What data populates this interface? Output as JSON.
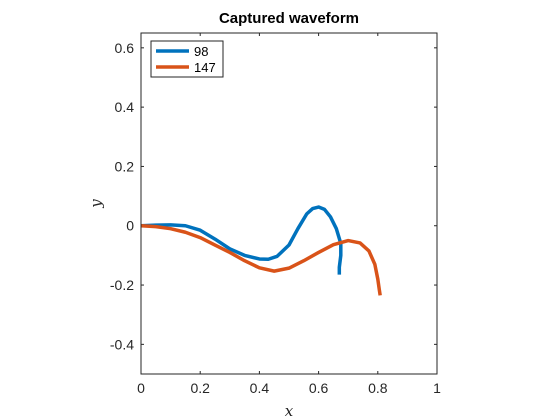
{
  "chart_data": {
    "type": "line",
    "title": "Captured waveform",
    "xlabel": "x",
    "ylabel": "y",
    "xlim": [
      0,
      1
    ],
    "ylim": [
      -0.5,
      0.65
    ],
    "x_ticks": [
      0,
      0.2,
      0.4,
      0.6,
      0.8,
      1
    ],
    "x_tick_labels": [
      "0",
      "0.2",
      "0.4",
      "0.6",
      "0.8",
      "1"
    ],
    "y_ticks": [
      -0.4,
      -0.2,
      0,
      0.2,
      0.4,
      0.6
    ],
    "y_tick_labels": [
      "-0.4",
      "-0.2",
      "0",
      "0.2",
      "0.4",
      "0.6"
    ],
    "grid": false,
    "legend_position": "top-left",
    "series": [
      {
        "name": "98",
        "color": "#0072BD",
        "x": [
          0,
          0.05,
          0.1,
          0.15,
          0.2,
          0.25,
          0.3,
          0.35,
          0.4,
          0.43,
          0.46,
          0.5,
          0.53,
          0.56,
          0.58,
          0.6,
          0.62,
          0.64,
          0.66,
          0.675,
          0.675,
          0.67,
          0.67
        ],
        "y": [
          0,
          0.002,
          0.003,
          0.0,
          -0.015,
          -0.045,
          -0.078,
          -0.1,
          -0.112,
          -0.113,
          -0.103,
          -0.065,
          -0.01,
          0.04,
          0.058,
          0.063,
          0.055,
          0.03,
          -0.01,
          -0.06,
          -0.1,
          -0.14,
          -0.165
        ]
      },
      {
        "name": "147",
        "color": "#D95319",
        "x": [
          0,
          0.05,
          0.1,
          0.15,
          0.2,
          0.25,
          0.3,
          0.35,
          0.4,
          0.45,
          0.5,
          0.55,
          0.6,
          0.65,
          0.7,
          0.74,
          0.77,
          0.79,
          0.8,
          0.805,
          0.808
        ],
        "y": [
          0,
          -0.003,
          -0.01,
          -0.022,
          -0.04,
          -0.065,
          -0.09,
          -0.118,
          -0.142,
          -0.153,
          -0.143,
          -0.118,
          -0.09,
          -0.064,
          -0.05,
          -0.058,
          -0.085,
          -0.13,
          -0.18,
          -0.215,
          -0.235
        ]
      }
    ]
  }
}
